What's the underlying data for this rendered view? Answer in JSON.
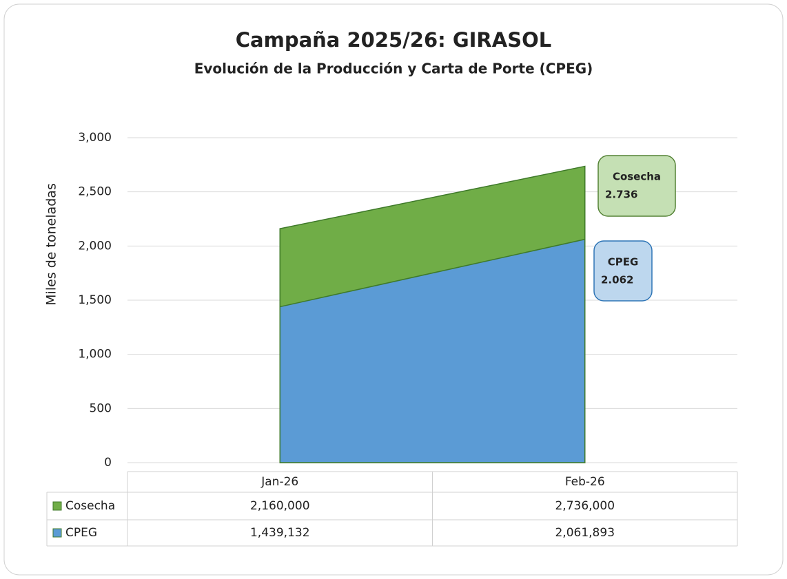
{
  "chart_data": {
    "type": "area",
    "title": "Campaña 2025/26: GIRASOL",
    "subtitle": "Evolución de la Producción y Carta de Porte (CPEG)",
    "y_label": "Miles de toneladas",
    "categories": [
      "Jan-26",
      "Feb-26"
    ],
    "series": [
      {
        "name": "Cosecha",
        "color": "#70ad47",
        "values": [
          2160,
          2736
        ],
        "value_labels": [
          "2,160,000",
          "2,736,000"
        ],
        "callout": "2.736"
      },
      {
        "name": "CPEG",
        "color": "#5b9bd5",
        "values": [
          1439.132,
          2061.893
        ],
        "value_labels": [
          "1,439,132",
          "2,061,893"
        ],
        "callout": "2.062"
      }
    ],
    "ylim": [
      0,
      3000
    ],
    "yticks": [
      0,
      500,
      {
        "value": 1000,
        "label": "1,000"
      },
      {
        "value": 1500,
        "label": "1,500"
      },
      {
        "value": 2000,
        "label": "2,000"
      },
      {
        "value": 2500,
        "label": "2,500"
      },
      {
        "value": 3000,
        "label": "3,000"
      }
    ],
    "grid": true,
    "data_table": true
  }
}
